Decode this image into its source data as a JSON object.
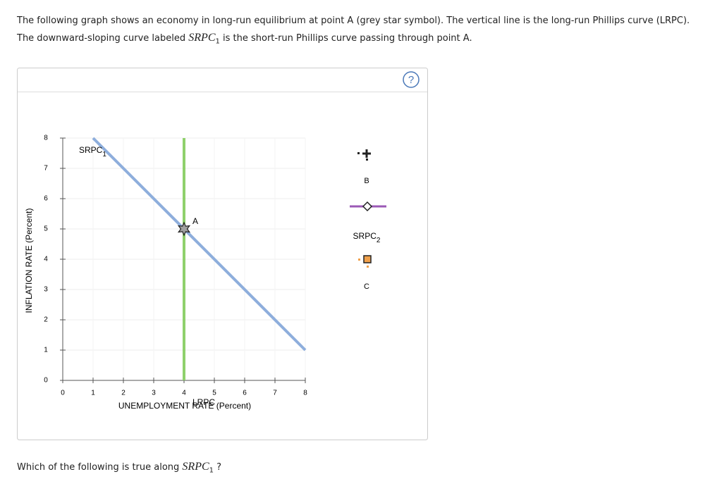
{
  "instructions": {
    "line1": "The following graph shows an economy in long-run equilibrium at point A (grey star symbol). The vertical line is the long-run Phillips curve (LRPC).",
    "line2_before": "The downward-sloping curve labeled",
    "line2_term": "SRPC",
    "line2_sub": "1",
    "line2_after": "is the short-run Phillips curve passing through point A."
  },
  "help": "?",
  "chart_data": {
    "type": "line",
    "x_label": "UNEMPLOYMENT RATE (Percent)",
    "y_label": "INFLATION RATE (Percent)",
    "xlim": [
      0,
      8
    ],
    "ylim": [
      0,
      8
    ],
    "xticks": [
      0,
      1,
      2,
      3,
      4,
      5,
      6,
      7,
      8
    ],
    "yticks": [
      0,
      1,
      2,
      3,
      4,
      5,
      6,
      7,
      8
    ],
    "grid": true,
    "series": [
      {
        "name": "SRPC",
        "subscript": "1",
        "color": "#8eaedc",
        "x": [
          1,
          8
        ],
        "values": [
          8,
          1
        ]
      },
      {
        "name": "LRPC",
        "color": "#8fd06c",
        "x": [
          4,
          4
        ],
        "values": [
          0,
          8
        ]
      }
    ],
    "point": {
      "label": "A",
      "x": 4,
      "y": 5,
      "color": "#a0a0a0"
    }
  },
  "palette": {
    "item1": "B",
    "item2_name": "SRPC",
    "item2_sub": "2",
    "item3": "C"
  },
  "question": {
    "before": "Which of the following is true along",
    "term": "SRPC",
    "sub": "1",
    "after": "?"
  }
}
